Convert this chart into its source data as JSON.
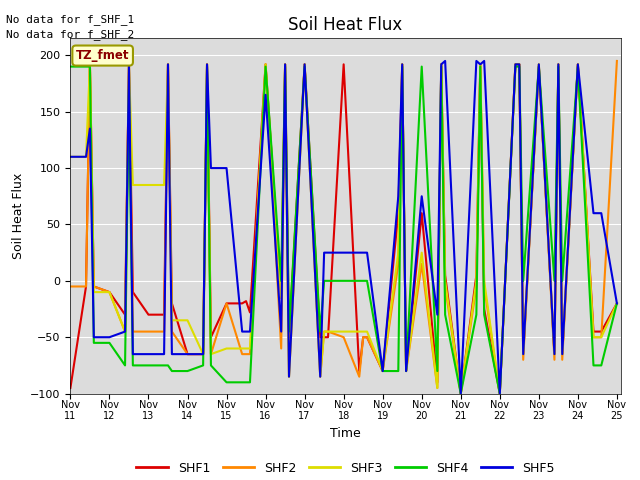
{
  "title": "Soil Heat Flux",
  "xlabel": "Time",
  "ylabel": "Soil Heat Flux",
  "annotation_text": "No data for f_SHF_1\nNo data for f_SHF_2",
  "box_label": "TZ_fmet",
  "ylim": [
    -100,
    215
  ],
  "yticks": [
    -100,
    -50,
    0,
    50,
    100,
    150,
    200
  ],
  "xlim": [
    11,
    25.1
  ],
  "x_tick_positions": [
    11,
    12,
    13,
    14,
    15,
    16,
    17,
    18,
    19,
    20,
    21,
    22,
    23,
    24,
    25
  ],
  "x_tick_labels": [
    "Nov 11",
    "Nov 12",
    "Nov 13",
    "Nov 14",
    "Nov 15",
    "Nov 16",
    "Nov 17",
    "Nov 18",
    "Nov 19",
    "Nov 20",
    "Nov 21",
    "Nov 22",
    "Nov 23",
    "Nov 24",
    "Nov 25"
  ],
  "series": {
    "SHF1": {
      "color": "#dd0000",
      "x": [
        11,
        11.4,
        11.5,
        11.6,
        12,
        12.4,
        12.5,
        12.6,
        13,
        13.4,
        13.5,
        13.6,
        14,
        14.4,
        14.5,
        14.6,
        15,
        15.4,
        15.5,
        15.6,
        16,
        16.4,
        16.5,
        16.6,
        17,
        17.4,
        17.5,
        17.6,
        18,
        18.4,
        18.5,
        18.6,
        19,
        19.4,
        19.5,
        19.6,
        20,
        20.4,
        20.5,
        20.6,
        21,
        21.4,
        21.5,
        21.6,
        22,
        22.4,
        22.5,
        22.6,
        23,
        23.4,
        23.5,
        23.6,
        24,
        24.4,
        24.5,
        24.6,
        25
      ],
      "y": [
        -95,
        -5,
        192,
        -5,
        -10,
        -30,
        192,
        -10,
        -30,
        -30,
        192,
        -20,
        -65,
        -65,
        192,
        -50,
        -20,
        -20,
        -18,
        -28,
        192,
        -15,
        192,
        -50,
        192,
        -50,
        -50,
        -50,
        192,
        -80,
        -50,
        -50,
        -80,
        60,
        192,
        -80,
        60,
        -90,
        192,
        5,
        -100,
        5,
        192,
        -25,
        -100,
        192,
        192,
        -65,
        190,
        -65,
        192,
        -65,
        192,
        -45,
        -45,
        -45,
        -20
      ]
    },
    "SHF2": {
      "color": "#ff8800",
      "x": [
        11,
        11.4,
        11.5,
        11.6,
        12,
        12.4,
        12.5,
        12.6,
        13,
        13.4,
        13.5,
        13.6,
        14,
        14.4,
        14.5,
        14.6,
        15,
        15.4,
        15.5,
        15.6,
        16,
        16.4,
        16.5,
        16.6,
        17,
        17.4,
        17.5,
        17.6,
        18,
        18.4,
        18.5,
        18.6,
        19,
        19.4,
        19.5,
        19.6,
        20,
        20.4,
        20.5,
        20.6,
        21,
        21.4,
        21.5,
        21.6,
        22,
        22.4,
        22.5,
        22.6,
        23,
        23.4,
        23.5,
        23.6,
        24,
        24.4,
        24.5,
        24.6,
        25
      ],
      "y": [
        -5,
        -5,
        192,
        -5,
        -10,
        -45,
        192,
        -45,
        -45,
        -45,
        192,
        -45,
        -65,
        -65,
        192,
        -65,
        -20,
        -65,
        -65,
        -65,
        192,
        -60,
        192,
        -85,
        192,
        -85,
        -45,
        -45,
        -50,
        -85,
        -50,
        -50,
        -80,
        15,
        192,
        -80,
        15,
        -95,
        192,
        -5,
        -100,
        -5,
        192,
        -5,
        -100,
        192,
        192,
        -70,
        192,
        -70,
        192,
        -70,
        192,
        -50,
        -50,
        -50,
        195
      ]
    },
    "SHF3": {
      "color": "#dddd00",
      "x": [
        11,
        11.4,
        11.5,
        11.6,
        12,
        12.4,
        12.5,
        12.6,
        13,
        13.4,
        13.5,
        13.6,
        14,
        14.4,
        14.5,
        14.6,
        15,
        15.4,
        15.5,
        15.6,
        16,
        16.4,
        16.5,
        16.6,
        17,
        17.4,
        17.5,
        17.6,
        18,
        18.4,
        18.5,
        18.6,
        19,
        19.4,
        19.5,
        19.6,
        20,
        20.4,
        20.5,
        20.6,
        21,
        21.4,
        21.5,
        21.6,
        22,
        22.4,
        22.5,
        22.6,
        23,
        23.4,
        23.5,
        23.6,
        24,
        24.4,
        24.5,
        24.6,
        25
      ],
      "y": [
        110,
        110,
        192,
        -10,
        -10,
        -45,
        192,
        85,
        85,
        85,
        192,
        -35,
        -35,
        -65,
        192,
        -65,
        -60,
        -60,
        -60,
        -60,
        192,
        -15,
        192,
        -85,
        192,
        -85,
        -45,
        -45,
        -45,
        -45,
        -45,
        -45,
        -80,
        25,
        192,
        -80,
        25,
        -95,
        192,
        0,
        -100,
        0,
        192,
        0,
        -100,
        192,
        192,
        -65,
        192,
        -65,
        192,
        -65,
        192,
        -50,
        -50,
        -50,
        -20
      ]
    },
    "SHF4": {
      "color": "#00cc00",
      "x": [
        11,
        11.4,
        11.5,
        11.6,
        12,
        12.4,
        12.5,
        12.6,
        13,
        13.4,
        13.5,
        13.6,
        14,
        14.4,
        14.5,
        14.6,
        15,
        15.4,
        15.5,
        15.6,
        16,
        16.4,
        16.5,
        16.6,
        17,
        17.4,
        17.5,
        17.6,
        18,
        18.4,
        18.5,
        18.6,
        19,
        19.4,
        19.5,
        19.6,
        20,
        20.4,
        20.5,
        20.6,
        21,
        21.4,
        21.5,
        21.6,
        22,
        22.4,
        22.5,
        22.6,
        23,
        23.4,
        23.5,
        23.6,
        24,
        24.4,
        24.5,
        24.6,
        25
      ],
      "y": [
        190,
        190,
        190,
        -55,
        -55,
        -75,
        170,
        -75,
        -75,
        -75,
        -75,
        -80,
        -80,
        -75,
        190,
        -75,
        -90,
        -90,
        -90,
        -90,
        190,
        0,
        190,
        -45,
        190,
        -45,
        0,
        0,
        0,
        0,
        0,
        0,
        -80,
        -80,
        190,
        -80,
        190,
        -80,
        190,
        -30,
        -100,
        -30,
        190,
        -30,
        -100,
        190,
        190,
        0,
        190,
        0,
        190,
        0,
        190,
        -75,
        -75,
        -75,
        -20
      ]
    },
    "SHF5": {
      "color": "#0000dd",
      "x": [
        11,
        11.4,
        11.5,
        11.6,
        12,
        12.4,
        12.5,
        12.6,
        13,
        13.4,
        13.5,
        13.6,
        14,
        14.4,
        14.5,
        14.6,
        15,
        15.4,
        15.5,
        15.6,
        16,
        16.4,
        16.5,
        16.6,
        17,
        17.4,
        17.5,
        17.6,
        18,
        18.4,
        18.5,
        18.6,
        19,
        19.4,
        19.5,
        19.6,
        20,
        20.4,
        20.5,
        20.6,
        21,
        21.4,
        21.5,
        21.6,
        22,
        22.4,
        22.5,
        22.6,
        23,
        23.4,
        23.5,
        23.6,
        24,
        24.4,
        24.5,
        24.6,
        25
      ],
      "y": [
        110,
        110,
        135,
        -50,
        -50,
        -45,
        192,
        -65,
        -65,
        -65,
        192,
        -65,
        -65,
        -65,
        192,
        100,
        100,
        -45,
        -45,
        -45,
        165,
        -45,
        192,
        -85,
        192,
        -85,
        25,
        25,
        25,
        25,
        25,
        25,
        -80,
        75,
        192,
        -80,
        75,
        -30,
        192,
        195,
        -100,
        195,
        192,
        195,
        -100,
        192,
        192,
        -65,
        192,
        -65,
        192,
        -65,
        192,
        60,
        60,
        60,
        -20
      ]
    }
  },
  "background_color": "#dcdcdc",
  "grid_color": "#ffffff",
  "legend_items": [
    "SHF1",
    "SHF2",
    "SHF3",
    "SHF4",
    "SHF5"
  ],
  "legend_colors": [
    "#dd0000",
    "#ff8800",
    "#dddd00",
    "#00cc00",
    "#0000dd"
  ],
  "linewidth": 1.5
}
